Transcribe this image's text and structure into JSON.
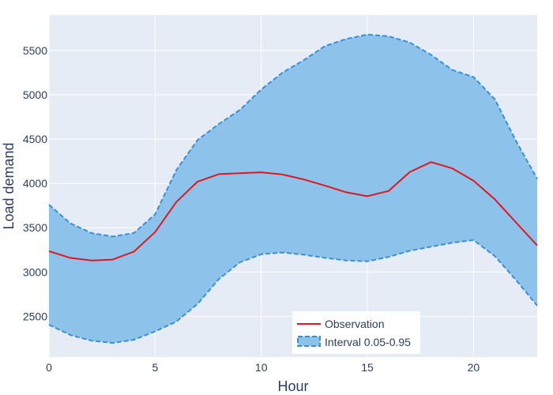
{
  "chart_data": {
    "type": "line",
    "x": [
      0,
      1,
      2,
      3,
      4,
      5,
      6,
      7,
      8,
      9,
      10,
      11,
      12,
      13,
      14,
      15,
      16,
      17,
      18,
      19,
      20,
      21,
      22,
      23
    ],
    "series": [
      {
        "name": "Observation",
        "values": [
          3235,
          3160,
          3130,
          3140,
          3230,
          3450,
          3790,
          4020,
          4105,
          4115,
          4125,
          4100,
          4045,
          3975,
          3900,
          3855,
          3915,
          4130,
          4240,
          4170,
          4030,
          3820,
          3560,
          3300
        ]
      },
      {
        "name": "Interval 0.05-0.95",
        "lower": [
          2405,
          2290,
          2225,
          2200,
          2235,
          2330,
          2440,
          2640,
          2920,
          3110,
          3200,
          3220,
          3195,
          3160,
          3130,
          3120,
          3170,
          3240,
          3285,
          3330,
          3360,
          3180,
          2910,
          2620
        ],
        "upper": [
          3760,
          3550,
          3440,
          3400,
          3440,
          3650,
          4150,
          4490,
          4670,
          4830,
          5060,
          5250,
          5390,
          5550,
          5630,
          5680,
          5660,
          5590,
          5450,
          5280,
          5200,
          4950,
          4480,
          4050
        ]
      }
    ],
    "xlabel": "Hour",
    "ylabel": "Load demand",
    "xlim": [
      0,
      23
    ],
    "ylim": [
      2040,
      5900
    ],
    "xticks": [
      0,
      5,
      10,
      15,
      20
    ],
    "yticks": [
      2500,
      3000,
      3500,
      4000,
      4500,
      5000,
      5500
    ],
    "grid": true,
    "legend_position": "bottom-center",
    "colors": {
      "plot_background": "#e5ecf6",
      "observation_line": "#e3161b",
      "interval_fill": "#8dc3ea",
      "interval_border": "#3a8fd6",
      "text": "#2a3f5f"
    }
  }
}
